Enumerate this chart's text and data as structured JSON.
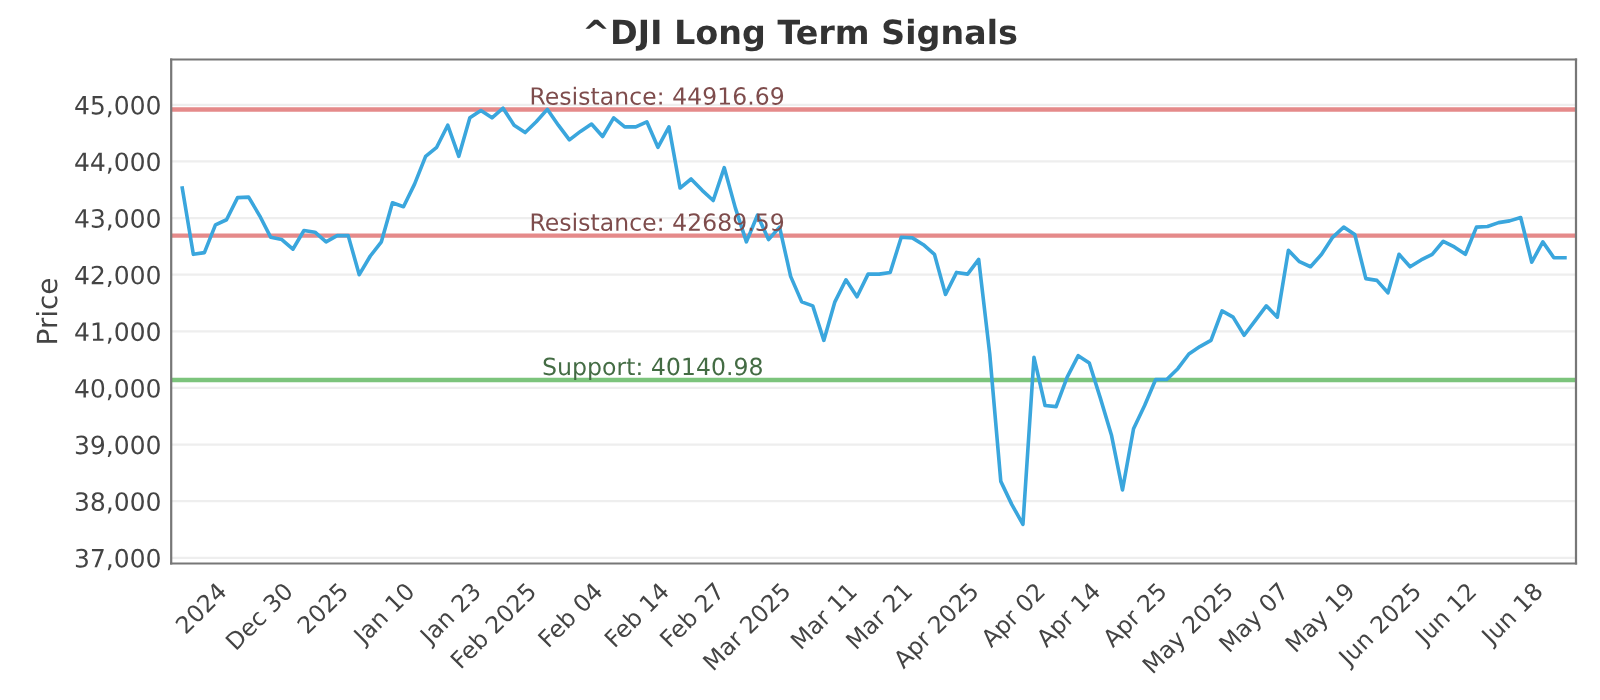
{
  "chart_data": {
    "type": "line",
    "title": "^DJI Long Term Signals",
    "ylabel": "Price",
    "categories": [
      null,
      null,
      null,
      "2024",
      null,
      null,
      null,
      null,
      null,
      "Dec 30",
      null,
      null,
      null,
      null,
      "2025",
      null,
      null,
      null,
      null,
      null,
      "Jan 10",
      null,
      null,
      null,
      null,
      null,
      "Jan 23",
      null,
      null,
      null,
      null,
      "Feb 2025",
      null,
      null,
      null,
      null,
      null,
      "Feb 04",
      null,
      null,
      null,
      null,
      null,
      "Feb 14",
      null,
      null,
      null,
      null,
      "Feb 27",
      null,
      null,
      null,
      null,
      null,
      "Mar 2025",
      null,
      null,
      null,
      null,
      null,
      "Mar 11",
      null,
      null,
      null,
      null,
      "Mar 21",
      null,
      null,
      null,
      null,
      null,
      "Apr 2025",
      null,
      null,
      null,
      null,
      null,
      "Apr 02",
      null,
      null,
      null,
      null,
      "Apr 14",
      null,
      null,
      null,
      null,
      null,
      "Apr 25",
      null,
      null,
      null,
      null,
      null,
      "May 2025",
      null,
      null,
      null,
      null,
      "May 07",
      null,
      null,
      null,
      null,
      null,
      "May 19",
      null,
      null,
      null,
      null,
      null,
      "Jun 2025",
      null,
      null,
      null,
      null,
      "Jun 12",
      null,
      null,
      null,
      null,
      null,
      "Jun 18",
      null,
      null,
      null
    ],
    "series": [
      {
        "color": "#3aa6dd",
        "values": [
          43530,
          42360,
          42390,
          42880,
          42970,
          43360,
          43370,
          43040,
          42660,
          42620,
          42450,
          42780,
          42750,
          42580,
          42690,
          42690,
          42000,
          42330,
          42580,
          43270,
          43200,
          43600,
          44090,
          44250,
          44640,
          44090,
          44770,
          44900,
          44770,
          44940,
          44640,
          44510,
          44700,
          44920,
          44640,
          44380,
          44530,
          44660,
          44440,
          44770,
          44610,
          44610,
          44700,
          44250,
          44610,
          43530,
          43690,
          43490,
          43310,
          43890,
          43180,
          42580,
          43050,
          42620,
          42840,
          41970,
          41520,
          41450,
          40840,
          41520,
          41910,
          41610,
          42010,
          42010,
          42040,
          42660,
          42650,
          42530,
          42360,
          41650,
          42040,
          42010,
          42270,
          40600,
          38350,
          37940,
          37590,
          40540,
          39690,
          39670,
          40190,
          40570,
          40440,
          39820,
          39170,
          38200,
          39280,
          39690,
          40150,
          40150,
          40340,
          40600,
          40730,
          40840,
          41360,
          41250,
          40930,
          41190,
          41450,
          41250,
          42430,
          42230,
          42140,
          42360,
          42660,
          42840,
          42710,
          41930,
          41900,
          41680,
          42360,
          42140,
          42260,
          42360,
          42590,
          42490,
          42360,
          42840,
          42850,
          42920,
          42950,
          43010,
          42220,
          42580,
          42300,
          42300
        ]
      }
    ],
    "ylim": [
      36900,
      45800
    ],
    "yticks": [
      {
        "value": 37000,
        "label": "37,000"
      },
      {
        "value": 38000,
        "label": "38,000"
      },
      {
        "value": 39000,
        "label": "39,000"
      },
      {
        "value": 40000,
        "label": "40,000"
      },
      {
        "value": 41000,
        "label": "41,000"
      },
      {
        "value": 42000,
        "label": "42,000"
      },
      {
        "value": 43000,
        "label": "43,000"
      },
      {
        "value": 44000,
        "label": "44,000"
      },
      {
        "value": 45000,
        "label": "45,000"
      }
    ],
    "grid": "y",
    "marker": "none",
    "line_style": "solid",
    "ref_lines": [
      {
        "axis": "y",
        "value": 44916.69,
        "label": "Resistance: 44916.69",
        "color": "#e58a8a"
      },
      {
        "axis": "y",
        "value": 42689.59,
        "label": "Resistance: 42689.59",
        "color": "#e58a8a"
      },
      {
        "axis": "y",
        "value": 40140.98,
        "label": "Support: 40140.98",
        "color": "#7cc47c"
      }
    ]
  }
}
